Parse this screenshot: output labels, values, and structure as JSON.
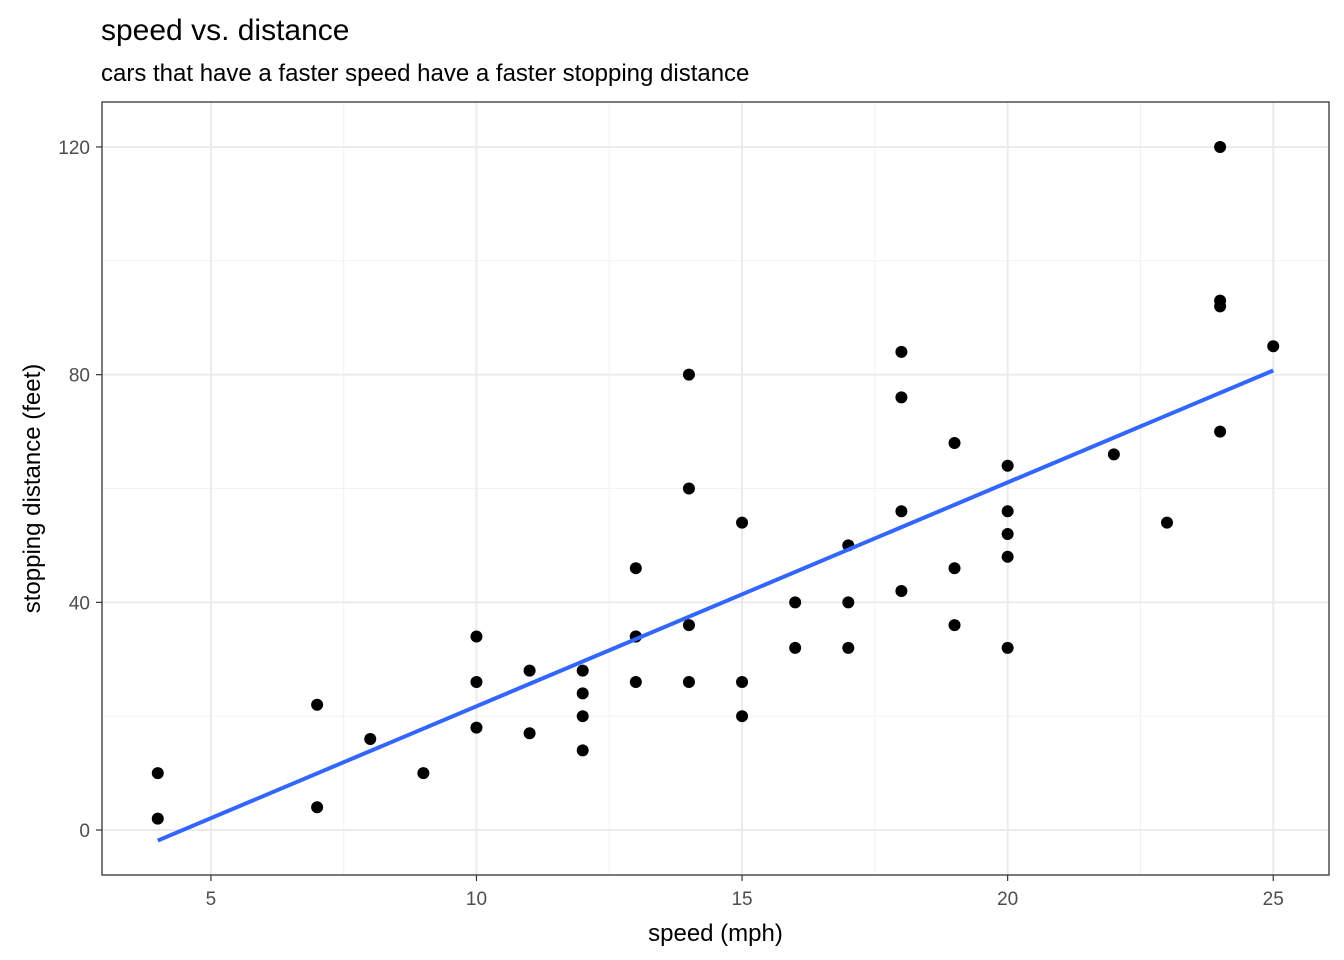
{
  "chart_data": {
    "type": "scatter",
    "title": "speed vs. distance",
    "subtitle": "cars that have a faster speed have a faster stopping distance",
    "xlabel": "speed (mph)",
    "ylabel": "stopping distance (feet)",
    "xlim": [
      2.95,
      26.05
    ],
    "ylim": [
      -7.9,
      127.9
    ],
    "x_ticks": [
      5,
      10,
      15,
      20,
      25
    ],
    "y_ticks": [
      0,
      40,
      80,
      120
    ],
    "grid": true,
    "point_color": "#000000",
    "trend_color": "#3366ff",
    "points": [
      {
        "x": 4,
        "y": 2
      },
      {
        "x": 4,
        "y": 10
      },
      {
        "x": 7,
        "y": 4
      },
      {
        "x": 7,
        "y": 22
      },
      {
        "x": 8,
        "y": 16
      },
      {
        "x": 9,
        "y": 10
      },
      {
        "x": 10,
        "y": 18
      },
      {
        "x": 10,
        "y": 26
      },
      {
        "x": 10,
        "y": 34
      },
      {
        "x": 11,
        "y": 17
      },
      {
        "x": 11,
        "y": 28
      },
      {
        "x": 12,
        "y": 14
      },
      {
        "x": 12,
        "y": 20
      },
      {
        "x": 12,
        "y": 24
      },
      {
        "x": 12,
        "y": 28
      },
      {
        "x": 13,
        "y": 26
      },
      {
        "x": 13,
        "y": 34
      },
      {
        "x": 13,
        "y": 34
      },
      {
        "x": 13,
        "y": 46
      },
      {
        "x": 14,
        "y": 26
      },
      {
        "x": 14,
        "y": 36
      },
      {
        "x": 14,
        "y": 60
      },
      {
        "x": 14,
        "y": 80
      },
      {
        "x": 15,
        "y": 20
      },
      {
        "x": 15,
        "y": 26
      },
      {
        "x": 15,
        "y": 54
      },
      {
        "x": 16,
        "y": 32
      },
      {
        "x": 16,
        "y": 40
      },
      {
        "x": 17,
        "y": 32
      },
      {
        "x": 17,
        "y": 40
      },
      {
        "x": 17,
        "y": 50
      },
      {
        "x": 18,
        "y": 42
      },
      {
        "x": 18,
        "y": 56
      },
      {
        "x": 18,
        "y": 76
      },
      {
        "x": 18,
        "y": 84
      },
      {
        "x": 19,
        "y": 36
      },
      {
        "x": 19,
        "y": 46
      },
      {
        "x": 19,
        "y": 68
      },
      {
        "x": 20,
        "y": 32
      },
      {
        "x": 20,
        "y": 48
      },
      {
        "x": 20,
        "y": 52
      },
      {
        "x": 20,
        "y": 56
      },
      {
        "x": 20,
        "y": 64
      },
      {
        "x": 22,
        "y": 66
      },
      {
        "x": 23,
        "y": 54
      },
      {
        "x": 24,
        "y": 70
      },
      {
        "x": 24,
        "y": 92
      },
      {
        "x": 24,
        "y": 93
      },
      {
        "x": 24,
        "y": 120
      },
      {
        "x": 25,
        "y": 85
      }
    ],
    "trend_line": {
      "x": [
        4,
        25
      ],
      "y": [
        -1.85,
        80.73
      ]
    }
  }
}
